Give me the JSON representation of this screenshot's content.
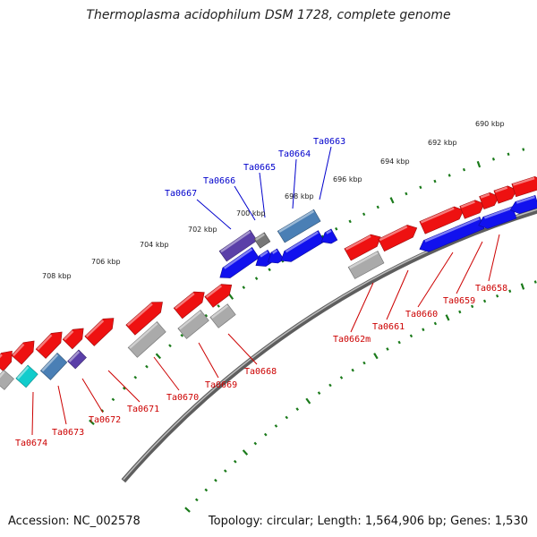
{
  "title": "Thermoplasma acidophilum DSM 1728, complete genome",
  "footer": {
    "accession": "Accession: NC_002578",
    "summary": "Topology: circular; Length: 1,564,906 bp; Genes: 1,530"
  },
  "colors": {
    "forward_gene": "#ee1111",
    "reverse_gene": "#1111ee",
    "pseudo_gene": "#aaaaaa",
    "steel_gene": "#4a7fb5",
    "purple_gene": "#5a3fa8",
    "cyan_gene": "#11cccc",
    "backbone": "#777777",
    "tick": "#1a7a1a",
    "label_forward": "#cc0000",
    "label_reverse": "#0000cc"
  },
  "scale_labels": [
    "690 kbp",
    "692 kbp",
    "694 kbp",
    "696 kbp",
    "698 kbp",
    "700 kbp",
    "702 kbp",
    "704 kbp",
    "706 kbp",
    "708 kbp"
  ],
  "top_gene_labels": [
    "Ta0667",
    "Ta0666",
    "Ta0665",
    "Ta0664",
    "Ta0663"
  ],
  "bottom_gene_labels": [
    "Ta0674",
    "Ta0673",
    "Ta0672",
    "Ta0671",
    "Ta0670",
    "Ta0669",
    "Ta0668",
    "Ta0662m",
    "Ta0661",
    "Ta0660",
    "Ta0659",
    "Ta0658"
  ]
}
